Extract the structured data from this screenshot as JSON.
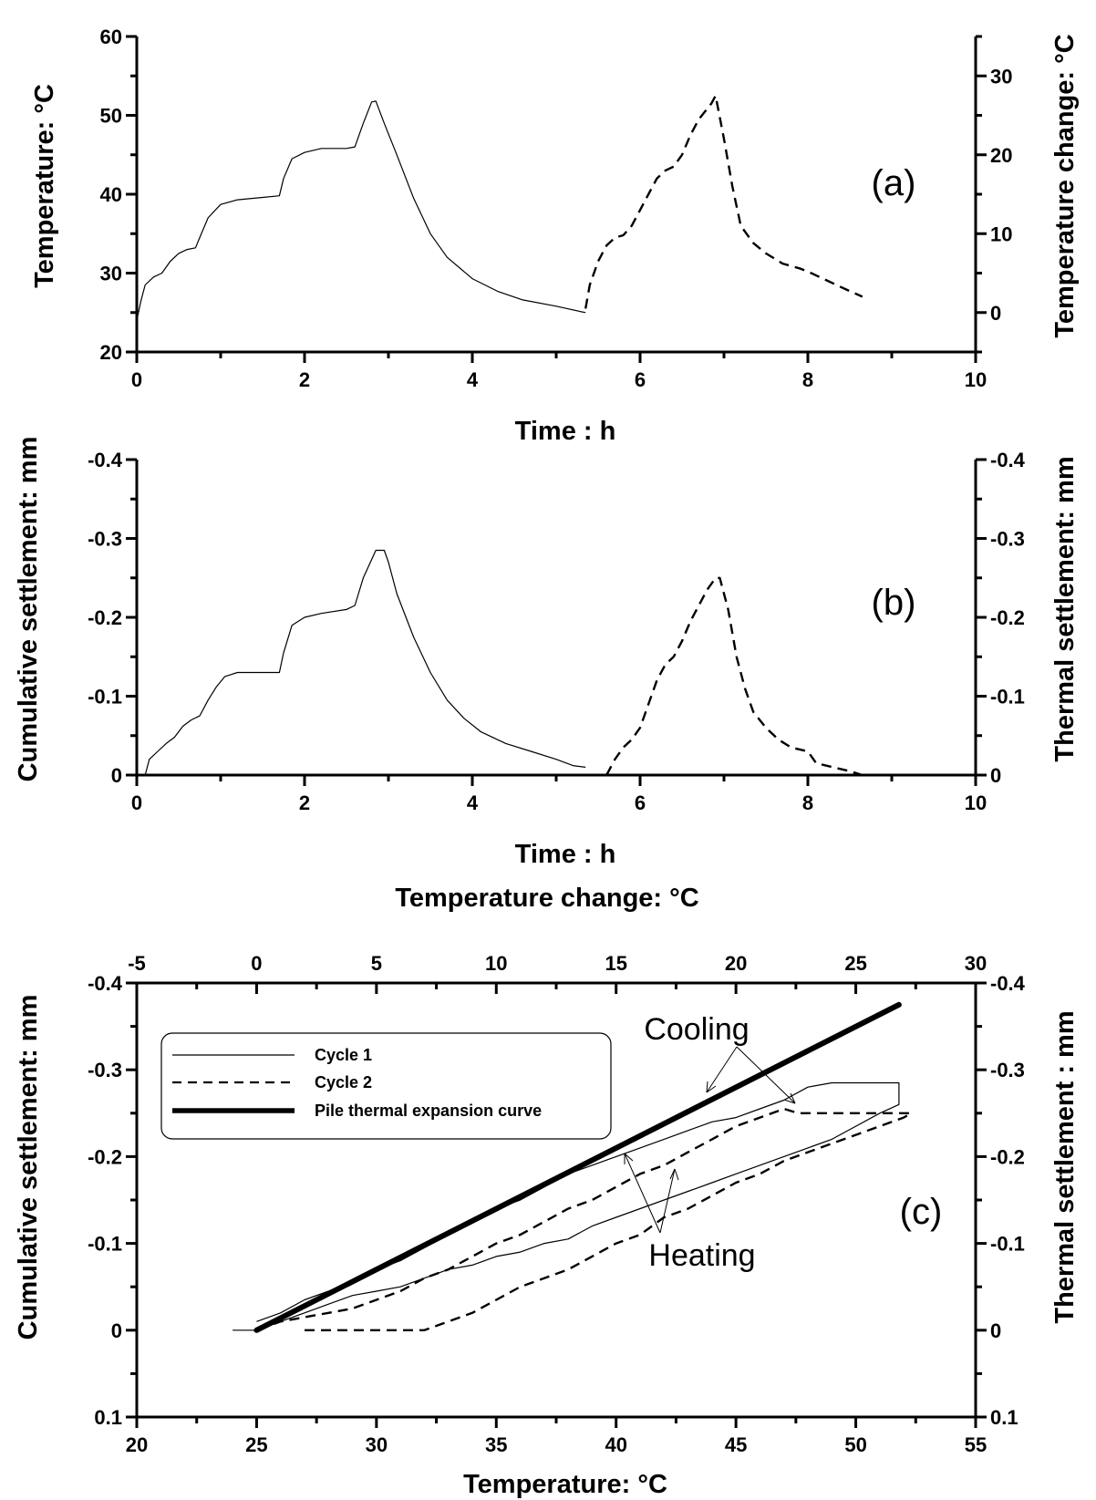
{
  "chart_data": [
    {
      "id": "a",
      "type": "line",
      "panel_label": "(a)",
      "xlabel": "Time : h",
      "ylabel": "Temperature: °C",
      "y2label": "Temperature change: °C",
      "xlim": [
        0,
        10
      ],
      "ylim": [
        20,
        60
      ],
      "y2lim": [
        -5,
        35
      ],
      "xticks": [
        "0",
        "2",
        "4",
        "6",
        "8",
        "10"
      ],
      "yticks": [
        "20",
        "30",
        "40",
        "50",
        "60"
      ],
      "y2ticks": [
        "0",
        "10",
        "20",
        "30"
      ],
      "grid": false,
      "series": [
        {
          "style": "solid",
          "axis": "left",
          "x": [
            0,
            0.05,
            0.1,
            0.2,
            0.3,
            0.4,
            0.5,
            0.6,
            0.7,
            0.75,
            0.85,
            1.0,
            1.2,
            1.5,
            1.7,
            1.75,
            1.85,
            2.0,
            2.2,
            2.5,
            2.6,
            2.7,
            2.8,
            2.85,
            2.95,
            3.1,
            3.3,
            3.5,
            3.7,
            4.0,
            4.3,
            4.6,
            5.0,
            5.3,
            5.35
          ],
          "y": [
            24,
            26.5,
            28.5,
            29.5,
            30,
            31.5,
            32.5,
            33,
            33.2,
            34.5,
            37,
            38.7,
            39.3,
            39.6,
            39.8,
            42,
            44.5,
            45.3,
            45.8,
            45.8,
            46,
            49,
            51.7,
            51.8,
            49,
            45,
            39.5,
            35,
            32,
            29.3,
            27.7,
            26.6,
            25.8,
            25.1,
            25
          ]
        },
        {
          "style": "dashed",
          "axis": "right",
          "x": [
            5.35,
            5.4,
            5.5,
            5.6,
            5.7,
            5.8,
            5.9,
            6.0,
            6.1,
            6.2,
            6.3,
            6.4,
            6.5,
            6.6,
            6.7,
            6.85,
            6.9,
            7.0,
            7.1,
            7.2,
            7.35,
            7.5,
            7.7,
            7.9,
            8.0,
            8.2,
            8.4,
            8.65
          ],
          "y": [
            0.5,
            3.5,
            6.5,
            8.5,
            9.5,
            9.8,
            11,
            13,
            15,
            17,
            18,
            18.5,
            20,
            22.5,
            24.5,
            26.5,
            27.5,
            22,
            16,
            11,
            8.8,
            7.5,
            6.2,
            5.6,
            5.2,
            4.2,
            3.2,
            2
          ]
        }
      ]
    },
    {
      "id": "b",
      "type": "line",
      "panel_label": "(b)",
      "xlabel": "Time : h",
      "ylabel": "Cumulative settlement: mm",
      "y2label": "Thermal settlement: mm",
      "xlim": [
        0,
        10
      ],
      "ylim": [
        0,
        -0.4
      ],
      "y2lim": [
        0,
        -0.4
      ],
      "xticks": [
        "0",
        "2",
        "4",
        "6",
        "8",
        "10"
      ],
      "yticks": [
        "0",
        "-0.1",
        "-0.2",
        "-0.3",
        "-0.4"
      ],
      "y2ticks": [
        "0",
        "-0.1",
        "-0.2",
        "-0.3",
        "-0.4"
      ],
      "grid": false,
      "series": [
        {
          "style": "solid",
          "axis": "left",
          "x": [
            0,
            0.1,
            0.15,
            0.25,
            0.35,
            0.45,
            0.55,
            0.65,
            0.75,
            0.85,
            0.95,
            1.05,
            1.2,
            1.5,
            1.7,
            1.75,
            1.85,
            2.0,
            2.2,
            2.5,
            2.6,
            2.7,
            2.85,
            2.95,
            3.0,
            3.1,
            3.3,
            3.5,
            3.7,
            3.9,
            4.1,
            4.4,
            4.7,
            5.0,
            5.2,
            5.35
          ],
          "y": [
            0,
            0,
            -0.02,
            -0.03,
            -0.04,
            -0.048,
            -0.062,
            -0.07,
            -0.075,
            -0.095,
            -0.112,
            -0.125,
            -0.13,
            -0.13,
            -0.13,
            -0.155,
            -0.19,
            -0.2,
            -0.205,
            -0.21,
            -0.215,
            -0.25,
            -0.285,
            -0.285,
            -0.27,
            -0.23,
            -0.175,
            -0.13,
            -0.095,
            -0.072,
            -0.055,
            -0.04,
            -0.03,
            -0.02,
            -0.012,
            -0.01
          ]
        },
        {
          "style": "dashed",
          "axis": "right",
          "x": [
            5.6,
            5.7,
            5.8,
            5.9,
            6.0,
            6.1,
            6.2,
            6.3,
            6.4,
            6.5,
            6.6,
            6.7,
            6.8,
            6.9,
            6.95,
            7.05,
            7.15,
            7.25,
            7.35,
            7.5,
            7.65,
            7.8,
            8.0,
            8.1,
            8.3,
            8.5,
            8.65
          ],
          "y": [
            0,
            -0.02,
            -0.035,
            -0.045,
            -0.06,
            -0.09,
            -0.12,
            -0.14,
            -0.15,
            -0.17,
            -0.195,
            -0.215,
            -0.235,
            -0.25,
            -0.25,
            -0.21,
            -0.15,
            -0.11,
            -0.08,
            -0.06,
            -0.045,
            -0.035,
            -0.03,
            -0.015,
            -0.01,
            -0.005,
            0
          ]
        }
      ]
    },
    {
      "id": "c",
      "type": "line",
      "panel_label": "(c)",
      "xlabel": "Temperature: °C",
      "x2label": "Temperature change: °C",
      "ylabel": "Cumulative settlement: mm",
      "y2label": "Thermal settlement : mm",
      "xlim": [
        20,
        55
      ],
      "x2lim": [
        -5,
        30
      ],
      "ylim": [
        0.1,
        -0.4
      ],
      "y2lim": [
        0.1,
        -0.4
      ],
      "xticks": [
        "20",
        "25",
        "30",
        "35",
        "40",
        "45",
        "50",
        "55"
      ],
      "x2ticks": [
        "-5",
        "0",
        "5",
        "10",
        "15",
        "20",
        "25",
        "30"
      ],
      "yticks": [
        "0.1",
        "0",
        "-0.1",
        "-0.2",
        "-0.3",
        "-0.4"
      ],
      "y2ticks": [
        "0.1",
        "0",
        "-0.1",
        "-0.2",
        "-0.3",
        "-0.4"
      ],
      "grid": false,
      "legend": {
        "position": "top-left",
        "entries": [
          "Cycle 1",
          "Cycle 2",
          "Pile thermal expansion curve"
        ]
      },
      "series": [
        {
          "name": "Cycle 1",
          "style": "solid",
          "x": [
            24,
            25,
            26,
            27,
            28,
            29,
            30,
            31,
            32,
            33,
            34,
            35,
            36,
            37,
            38,
            39,
            40,
            41,
            42,
            43,
            44,
            45,
            46,
            47,
            48,
            49,
            50,
            51,
            51.8,
            51.8,
            51.7,
            51,
            50,
            49,
            48,
            47,
            46,
            45,
            44,
            43,
            42,
            41,
            40,
            39,
            38,
            37,
            36,
            35,
            34,
            33,
            32,
            31,
            30,
            29,
            28,
            27,
            26,
            25
          ],
          "y": [
            0,
            0,
            -0.01,
            -0.02,
            -0.03,
            -0.04,
            -0.045,
            -0.05,
            -0.06,
            -0.07,
            -0.075,
            -0.085,
            -0.09,
            -0.1,
            -0.105,
            -0.12,
            -0.13,
            -0.14,
            -0.15,
            -0.16,
            -0.17,
            -0.18,
            -0.19,
            -0.2,
            -0.21,
            -0.22,
            -0.235,
            -0.25,
            -0.26,
            -0.285,
            -0.285,
            -0.285,
            -0.285,
            -0.285,
            -0.28,
            -0.265,
            -0.255,
            -0.245,
            -0.24,
            -0.23,
            -0.22,
            -0.21,
            -0.2,
            -0.19,
            -0.18,
            -0.165,
            -0.15,
            -0.14,
            -0.125,
            -0.11,
            -0.095,
            -0.08,
            -0.07,
            -0.055,
            -0.045,
            -0.035,
            -0.02,
            -0.01
          ]
        },
        {
          "name": "Cycle 2",
          "style": "dashed",
          "x": [
            27,
            28,
            29,
            30,
            31,
            32,
            33,
            34,
            35,
            36,
            37,
            38,
            39,
            40,
            41,
            42,
            43,
            44,
            45,
            46,
            47,
            48,
            49,
            50,
            51,
            52,
            52.3,
            51,
            50,
            49,
            48,
            47.6,
            47,
            46,
            45,
            44,
            43,
            42,
            41,
            40,
            39,
            38,
            37,
            36,
            35,
            34,
            33,
            32,
            31,
            30,
            29,
            28,
            27,
            26,
            25
          ],
          "y": [
            0,
            0,
            0,
            0,
            0,
            0,
            -0.01,
            -0.02,
            -0.035,
            -0.05,
            -0.06,
            -0.07,
            -0.085,
            -0.1,
            -0.11,
            -0.13,
            -0.14,
            -0.155,
            -0.17,
            -0.18,
            -0.195,
            -0.205,
            -0.215,
            -0.225,
            -0.235,
            -0.245,
            -0.25,
            -0.25,
            -0.25,
            -0.25,
            -0.25,
            -0.25,
            -0.255,
            -0.245,
            -0.235,
            -0.22,
            -0.205,
            -0.19,
            -0.18,
            -0.165,
            -0.15,
            -0.14,
            -0.125,
            -0.11,
            -0.1,
            -0.085,
            -0.07,
            -0.06,
            -0.045,
            -0.035,
            -0.025,
            -0.02,
            -0.015,
            -0.01,
            0
          ]
        },
        {
          "name": "Pile thermal expansion curve",
          "style": "thick",
          "x": [
            25,
            51.8
          ],
          "y": [
            0,
            -0.375
          ]
        }
      ],
      "annotations": [
        "Cooling",
        "Heating"
      ]
    }
  ]
}
